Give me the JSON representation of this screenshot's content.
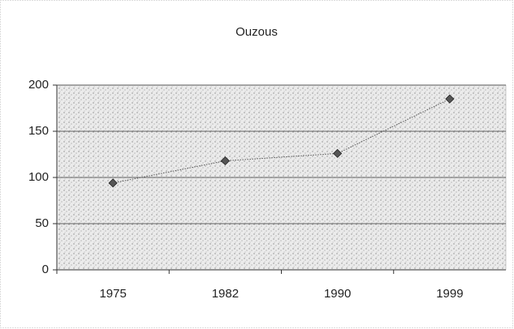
{
  "chart_data": {
    "type": "line",
    "title": "Ouzous",
    "categories": [
      "1975",
      "1982",
      "1990",
      "1999"
    ],
    "values": [
      94,
      118,
      126,
      185
    ],
    "color": "#555555",
    "ylim": [
      0,
      200
    ],
    "yticks": [
      0,
      50,
      100,
      150,
      200
    ],
    "grid": true
  }
}
